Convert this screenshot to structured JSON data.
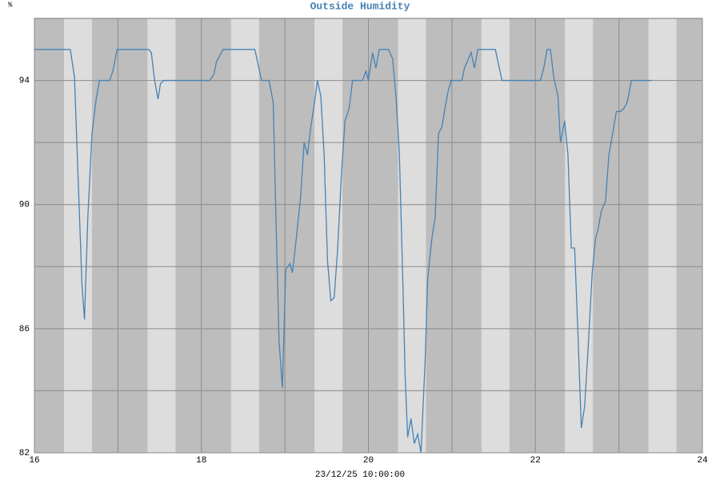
{
  "chart_data": {
    "type": "line",
    "title": "Outside Humidity",
    "ylabel": "%",
    "xlabel": "23/12/25 10:00:00",
    "color": "#4682b4",
    "x": [
      16.0,
      16.43,
      16.48,
      16.57,
      16.6,
      16.64,
      16.69,
      16.74,
      16.78,
      16.9,
      16.94,
      16.99,
      17.37,
      17.4,
      17.44,
      17.48,
      17.51,
      17.55,
      18.1,
      18.15,
      18.18,
      18.26,
      18.46,
      18.49,
      18.64,
      18.72,
      18.81,
      18.86,
      18.89,
      18.93,
      18.97,
      19.01,
      19.06,
      19.09,
      19.14,
      19.19,
      19.23,
      19.27,
      19.31,
      19.35,
      19.39,
      19.43,
      19.47,
      19.51,
      19.55,
      19.59,
      19.63,
      19.68,
      19.72,
      19.77,
      19.81,
      19.93,
      19.97,
      20.0,
      20.05,
      20.09,
      20.13,
      20.24,
      20.29,
      20.33,
      20.37,
      20.41,
      20.44,
      20.47,
      20.51,
      20.55,
      20.59,
      20.63,
      20.68,
      20.71,
      20.76,
      20.8,
      20.84,
      20.88,
      20.91,
      20.95,
      20.99,
      21.12,
      21.15,
      21.23,
      21.27,
      21.31,
      21.52,
      21.6,
      22.06,
      22.1,
      22.14,
      22.18,
      22.22,
      22.27,
      22.3,
      22.35,
      22.39,
      22.43,
      22.47,
      22.51,
      22.55,
      22.59,
      22.63,
      22.68,
      22.72,
      22.75,
      22.79,
      22.84,
      22.88,
      22.92,
      22.97,
      23.02,
      23.06,
      23.1,
      23.15,
      23.39
    ],
    "values": [
      95,
      95,
      94.1,
      87.4,
      86.3,
      89.6,
      92.3,
      93.4,
      94,
      94,
      94.3,
      95,
      95,
      94.9,
      94,
      93.4,
      93.9,
      94,
      94,
      94.2,
      94.6,
      95,
      95,
      95,
      95,
      94,
      94,
      93.3,
      89.9,
      85.6,
      84.1,
      87.9,
      88.1,
      87.8,
      89,
      90.3,
      92,
      91.6,
      92.5,
      93.2,
      94,
      93.5,
      91.6,
      88.2,
      86.9,
      87,
      88.5,
      91.1,
      92.7,
      93.1,
      94,
      94,
      94.3,
      94,
      94.9,
      94.4,
      95,
      95,
      94.7,
      93.5,
      91.7,
      87.8,
      84.5,
      82.5,
      83.1,
      82.3,
      82.6,
      82,
      85,
      87.6,
      88.9,
      89.6,
      92.3,
      92.5,
      93,
      93.6,
      94,
      94,
      94.4,
      94.9,
      94.4,
      95,
      95,
      94,
      94,
      94.4,
      95,
      95,
      94.1,
      93.5,
      92,
      92.7,
      91.6,
      88.6,
      88.6,
      85.8,
      82.8,
      83.5,
      85.3,
      87.8,
      88.9,
      89.2,
      89.8,
      90.1,
      91.6,
      92.2,
      93,
      93,
      93.1,
      93.3,
      94,
      94
    ],
    "xlim": [
      16,
      24
    ],
    "xticks": [
      16,
      18,
      20,
      22,
      24
    ],
    "xgrid": [
      17,
      19,
      21,
      23
    ],
    "ylim": [
      82,
      96
    ],
    "yticks": [
      82,
      86,
      90,
      94
    ],
    "ygrid": [
      84,
      88,
      92
    ],
    "grid": true
  }
}
